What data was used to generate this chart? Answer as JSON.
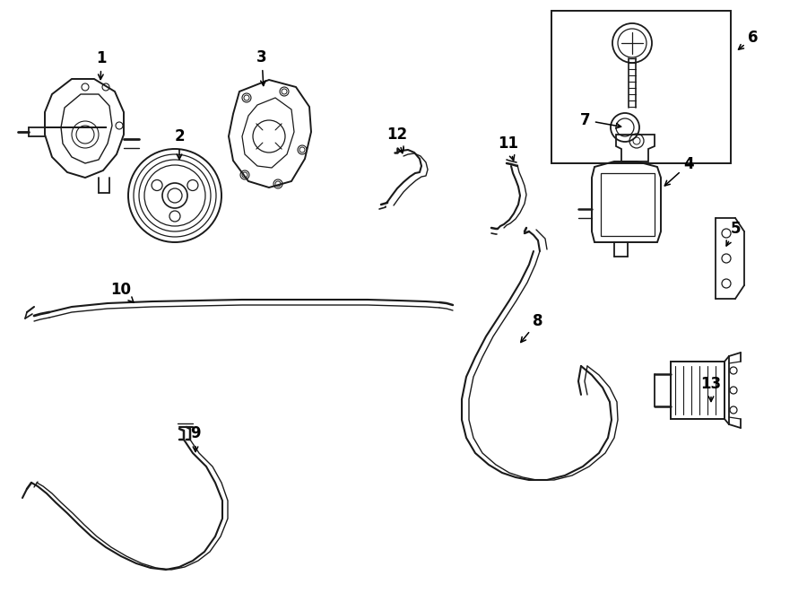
{
  "bg_color": "#ffffff",
  "line_color": "#1a1a1a",
  "fig_width": 9.0,
  "fig_height": 6.61,
  "dpi": 100,
  "image_b64": ""
}
